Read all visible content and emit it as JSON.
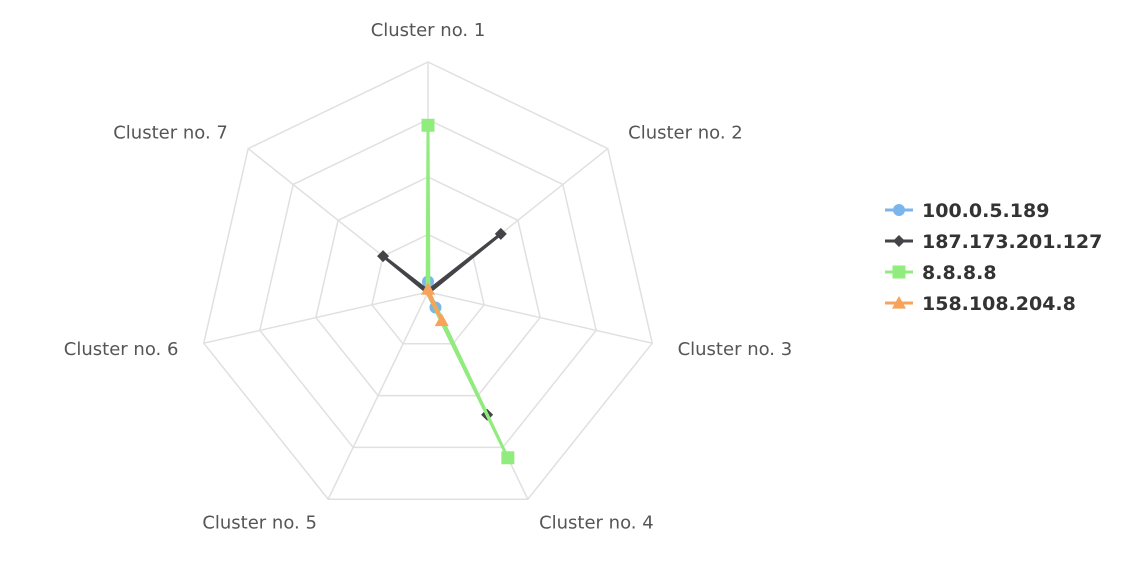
{
  "chart_data": {
    "type": "radar",
    "categories": [
      "Cluster no. 1",
      "Cluster no. 2",
      "Cluster no. 3",
      "Cluster no. 4",
      "Cluster no. 5",
      "Cluster no. 6",
      "Cluster no. 7"
    ],
    "rlim": [
      0,
      4
    ],
    "grid_levels": 4,
    "grid": true,
    "legend_position": "right",
    "series": [
      {
        "name": "100.0.5.189",
        "color": "#7cb5ec",
        "marker": "circle",
        "values": [
          0.18,
          0.02,
          0.02,
          0.3,
          0.02,
          0.02,
          0.02
        ]
      },
      {
        "name": "187.173.201.127",
        "color": "#434348",
        "marker": "diamond",
        "values": [
          0.02,
          1.62,
          0.02,
          2.37,
          0.02,
          0.02,
          1.0
        ]
      },
      {
        "name": "8.8.8.8",
        "color": "#90ed7d",
        "marker": "square",
        "values": [
          2.9,
          0.02,
          0.02,
          3.2,
          0.02,
          0.02,
          0.02
        ]
      },
      {
        "name": "158.108.204.8",
        "color": "#f7a35c",
        "marker": "triangle",
        "values": [
          0.05,
          0.02,
          0.02,
          0.55,
          0.02,
          0.02,
          0.02
        ]
      }
    ]
  }
}
